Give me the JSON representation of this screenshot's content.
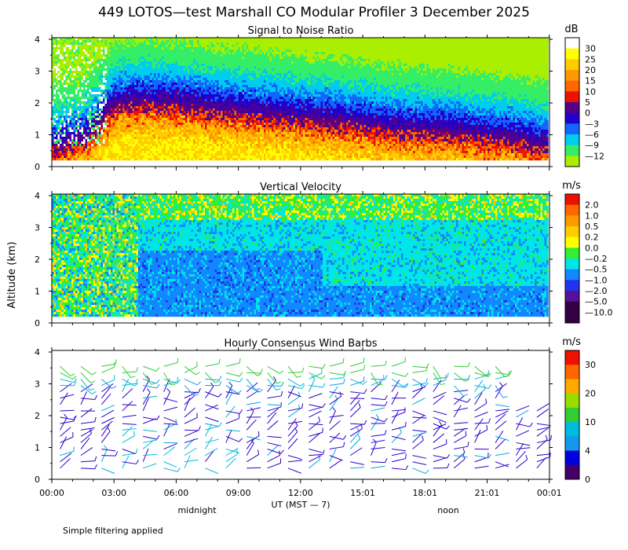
{
  "title": "449 LOTOS—test Marshall CO Modular Profiler  3 December 2025",
  "ylabel": "Altitude (km)",
  "xlabel": "UT  (MST — 7)",
  "x_ticks": [
    "00:00",
    "03:00",
    "06:00",
    "09:00",
    "12:00",
    "15:01",
    "18:01",
    "21:01",
    "00:01"
  ],
  "local_markers": [
    "midnight",
    "noon"
  ],
  "footnote": "Simple filtering applied",
  "y_ticks": [
    "0",
    "1",
    "2",
    "3",
    "4"
  ],
  "chart_data": [
    {
      "type": "heatmap",
      "title": "Signal to Noise Ratio",
      "units": "dB",
      "ylim": [
        0,
        4
      ],
      "color_scale": [
        {
          "label": "30",
          "color": "#ffffff"
        },
        {
          "label": "25",
          "color": "#ffff00"
        },
        {
          "label": "20",
          "color": "#ffcc00"
        },
        {
          "label": "15",
          "color": "#ff9900"
        },
        {
          "label": "10",
          "color": "#ff6600"
        },
        {
          "label": "5",
          "color": "#ee1100"
        },
        {
          "label": "0",
          "color": "#550088"
        },
        {
          "label": "—3",
          "color": "#2200cc"
        },
        {
          "label": "—6",
          "color": "#1166ff"
        },
        {
          "label": "—9",
          "color": "#00ccee"
        },
        {
          "label": "—12",
          "color": "#33ee66"
        },
        {
          "label": "",
          "color": "#aaee00"
        }
      ],
      "profile_hours": [
        0,
        1.5,
        3,
        4.5,
        6,
        7.5,
        9,
        10.5,
        12,
        13.5,
        15,
        16.5,
        18,
        19.5,
        21,
        22.5,
        24
      ],
      "strong_echo_top_km": [
        0.6,
        0.8,
        1.9,
        2.0,
        1.95,
        1.8,
        1.7,
        1.6,
        1.5,
        1.4,
        1.3,
        1.15,
        1.1,
        1.05,
        0.9,
        0.8,
        0.6
      ]
    },
    {
      "type": "heatmap",
      "title": "Vertical Velocity",
      "units": "m/s",
      "ylim": [
        0,
        4
      ],
      "color_scale": [
        {
          "label": "2.0",
          "color": "#ee1100"
        },
        {
          "label": "1.0",
          "color": "#ff6600"
        },
        {
          "label": "0.5",
          "color": "#ff9900"
        },
        {
          "label": "0.2",
          "color": "#ffcc00"
        },
        {
          "label": "0.0",
          "color": "#ffff00"
        },
        {
          "label": "—0.2",
          "color": "#33ee33"
        },
        {
          "label": "—0.5",
          "color": "#00e5e5"
        },
        {
          "label": "—1.0",
          "color": "#1188ff"
        },
        {
          "label": "—2.0",
          "color": "#2233ee"
        },
        {
          "label": "—5.0",
          "color": "#551199"
        },
        {
          "label": "—10.0",
          "color": "#330044"
        },
        {
          "label": "",
          "color": "#330044"
        }
      ]
    },
    {
      "type": "wind_barbs",
      "title": "Hourly Consensus Wind Barbs",
      "units": "m/s",
      "ylim": [
        0,
        4
      ],
      "color_scale": [
        {
          "label": "30",
          "color": "#ee1100"
        },
        {
          "label": "",
          "color": "#ff6600"
        },
        {
          "label": "20",
          "color": "#ffaa00"
        },
        {
          "label": "",
          "color": "#99dd00"
        },
        {
          "label": "10",
          "color": "#33cc33"
        },
        {
          "label": "",
          "color": "#00bbdd"
        },
        {
          "label": "4",
          "color": "#1199ee"
        },
        {
          "label": "",
          "color": "#0000dd"
        },
        {
          "label": "0",
          "color": "#440066"
        }
      ]
    }
  ]
}
